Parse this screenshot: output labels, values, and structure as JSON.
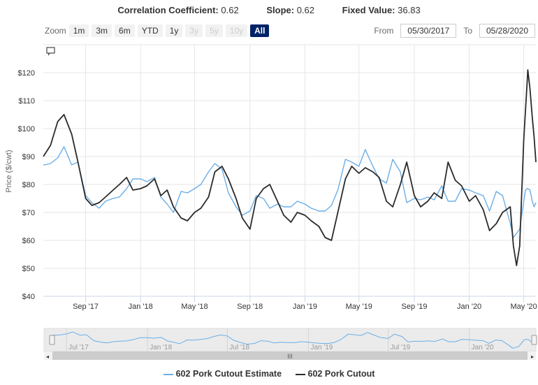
{
  "stats": {
    "corr_label": "Correlation Coefficient:",
    "corr_value": "0.62",
    "slope_label": "Slope:",
    "slope_value": "0.62",
    "fixed_label": "Fixed Value:",
    "fixed_value": "36.83"
  },
  "zoom": {
    "label": "Zoom",
    "buttons": [
      {
        "label": "1m",
        "state": "enabled"
      },
      {
        "label": "3m",
        "state": "enabled"
      },
      {
        "label": "6m",
        "state": "enabled"
      },
      {
        "label": "YTD",
        "state": "enabled"
      },
      {
        "label": "1y",
        "state": "enabled"
      },
      {
        "label": "3y",
        "state": "disabled"
      },
      {
        "label": "5y",
        "state": "disabled"
      },
      {
        "label": "10y",
        "state": "disabled"
      },
      {
        "label": "All",
        "state": "active"
      }
    ]
  },
  "range": {
    "from_label": "From",
    "from_value": "05/30/2017",
    "to_label": "To",
    "to_value": "05/28/2020"
  },
  "colors": {
    "estimate": "#6aaee8",
    "cutout": "#2b2b2b",
    "active_button": "#002366"
  },
  "chart_data": {
    "type": "line",
    "ylabel": "Price ($/cwt)",
    "ylim": [
      40,
      130
    ],
    "y_ticks": [
      "$40",
      "$50",
      "$60",
      "$70",
      "$80",
      "$90",
      "$100",
      "$110",
      "$120"
    ],
    "y_tick_values": [
      40,
      50,
      60,
      70,
      80,
      90,
      100,
      110,
      120
    ],
    "x_range": [
      "2017-05-30",
      "2020-05-28"
    ],
    "x_ticks": [
      "Sep '17",
      "Jan '18",
      "May '18",
      "Sep '18",
      "Jan '19",
      "May '19",
      "Sep '19",
      "Jan '20",
      "May '20"
    ],
    "x_tick_dates": [
      "2017-09-01",
      "2018-01-01",
      "2018-05-01",
      "2018-09-01",
      "2019-01-01",
      "2019-05-01",
      "2019-09-01",
      "2020-01-01",
      "2020-05-01"
    ],
    "grid": true,
    "legend_position": "bottom",
    "x": [
      "2017-05-30",
      "2017-06-01",
      "2017-06-15",
      "2017-07-01",
      "2017-07-15",
      "2017-08-01",
      "2017-08-15",
      "2017-09-01",
      "2017-09-15",
      "2017-10-01",
      "2017-10-15",
      "2017-11-01",
      "2017-11-15",
      "2017-12-01",
      "2017-12-15",
      "2018-01-01",
      "2018-01-15",
      "2018-02-01",
      "2018-02-15",
      "2018-03-01",
      "2018-03-15",
      "2018-04-01",
      "2018-04-15",
      "2018-05-01",
      "2018-05-15",
      "2018-06-01",
      "2018-06-15",
      "2018-07-01",
      "2018-07-15",
      "2018-08-01",
      "2018-08-15",
      "2018-09-01",
      "2018-09-15",
      "2018-10-01",
      "2018-10-15",
      "2018-11-01",
      "2018-11-15",
      "2018-12-01",
      "2018-12-15",
      "2019-01-01",
      "2019-01-15",
      "2019-02-01",
      "2019-02-15",
      "2019-03-01",
      "2019-03-15",
      "2019-04-01",
      "2019-04-15",
      "2019-05-01",
      "2019-05-15",
      "2019-06-01",
      "2019-06-15",
      "2019-07-01",
      "2019-07-15",
      "2019-08-01",
      "2019-08-15",
      "2019-09-01",
      "2019-09-15",
      "2019-10-01",
      "2019-10-15",
      "2019-11-01",
      "2019-11-15",
      "2019-12-01",
      "2019-12-15",
      "2020-01-01",
      "2020-01-15",
      "2020-02-01",
      "2020-02-15",
      "2020-03-01",
      "2020-03-15",
      "2020-04-01",
      "2020-04-08",
      "2020-04-15",
      "2020-04-22",
      "2020-05-01",
      "2020-05-05",
      "2020-05-08",
      "2020-05-10",
      "2020-05-15",
      "2020-05-20",
      "2020-05-24",
      "2020-05-28"
    ],
    "series": [
      {
        "name": "602 Pork Cutout Estimate",
        "color": "#6aaee8",
        "values": [
          87,
          87,
          87.5,
          89.5,
          93.5,
          87,
          88,
          76,
          73.5,
          71.5,
          74,
          75,
          75.5,
          78.5,
          82,
          82,
          81,
          82.5,
          75.5,
          73,
          70,
          77.5,
          77,
          78.5,
          80,
          84.5,
          87.5,
          85.5,
          77,
          72,
          69,
          70.5,
          76,
          75,
          71.5,
          73,
          72,
          72,
          74,
          73,
          71.5,
          70.5,
          70.5,
          72.5,
          78,
          89,
          88,
          86.5,
          92.5,
          86.5,
          82,
          80.5,
          89,
          84.5,
          73.5,
          75,
          74.5,
          75.5,
          74.5,
          79.5,
          74,
          74,
          78.5,
          78,
          77,
          76,
          70.5,
          77.5,
          76,
          66,
          61,
          62.5,
          64,
          74,
          78,
          78.5,
          78.5,
          78,
          74,
          72,
          73.5
        ]
      },
      {
        "name": "602 Pork Cutout",
        "color": "#2b2b2b",
        "values": [
          90,
          90.5,
          94,
          102.5,
          105,
          98,
          88,
          75,
          72.5,
          73.5,
          75.5,
          78,
          80,
          82.5,
          78,
          78.5,
          79.5,
          82,
          76,
          78,
          72,
          68,
          67,
          70,
          71.5,
          75.5,
          84.5,
          86.5,
          82,
          75,
          68,
          64,
          75,
          78.5,
          80,
          74,
          69,
          66.5,
          70,
          69,
          67,
          65,
          61,
          60,
          70,
          82,
          86.5,
          84,
          86,
          84.5,
          82.5,
          74,
          72,
          80,
          88,
          76,
          72,
          74,
          77,
          75,
          88,
          81.5,
          79.5,
          74,
          76,
          71,
          63.5,
          66,
          70,
          72,
          58,
          51,
          58,
          96,
          107,
          115,
          121,
          114,
          104,
          97,
          88
        ]
      }
    ]
  },
  "navigator": {
    "labels": [
      "Jul '17",
      "Jan '18",
      "Jul '18",
      "Jan '19",
      "Jul '19",
      "Jan '20"
    ],
    "label_dates": [
      "2017-07-01",
      "2018-01-01",
      "2018-07-01",
      "2019-01-01",
      "2019-07-01",
      "2020-01-01"
    ]
  },
  "comment_icon": "speech-bubble-icon"
}
